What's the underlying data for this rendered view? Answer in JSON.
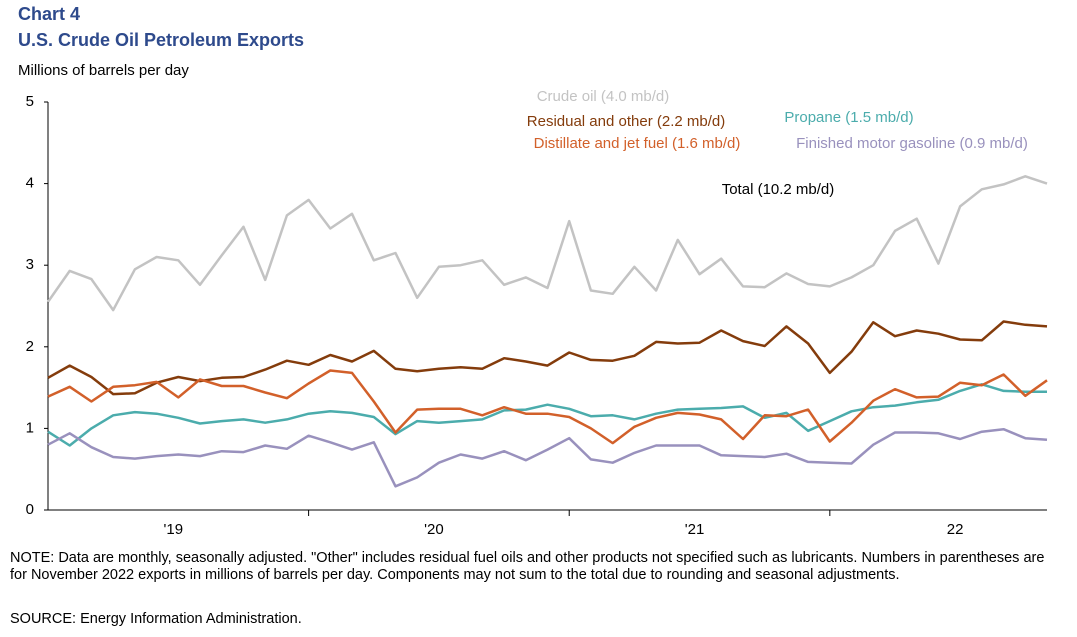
{
  "chart_data": {
    "type": "line",
    "title": "Chart 4",
    "subtitle": "U.S. Crude Oil Petroleum Exports",
    "y_label": "Millions  of barrels per day",
    "categories": [
      null,
      null,
      null,
      null,
      null,
      null,
      "'19",
      null,
      null,
      null,
      null,
      null,
      null,
      null,
      null,
      null,
      null,
      null,
      "'20",
      null,
      null,
      null,
      null,
      null,
      null,
      null,
      null,
      null,
      null,
      null,
      "'21",
      null,
      null,
      null,
      null,
      null,
      null,
      null,
      null,
      null,
      null,
      null,
      "22",
      null,
      null,
      null,
      null
    ],
    "ylim": [
      0,
      5
    ],
    "yticks": [
      0,
      1,
      2,
      3,
      4,
      5
    ],
    "grid": false,
    "series": [
      {
        "name": "Crude  oil  (4.0 mb/d)",
        "color": "#c3c3c3",
        "values": [
          2.55,
          2.93,
          2.83,
          2.45,
          2.95,
          3.1,
          3.06,
          2.76,
          3.12,
          3.47,
          2.82,
          3.61,
          3.8,
          3.45,
          3.63,
          3.06,
          3.15,
          2.6,
          2.98,
          3.0,
          3.06,
          2.76,
          2.85,
          2.72,
          3.54,
          2.69,
          2.65,
          2.98,
          2.69,
          3.31,
          2.89,
          3.08,
          2.74,
          2.73,
          2.9,
          2.77,
          2.74,
          2.85,
          3.0,
          3.42,
          3.57,
          3.02,
          3.72,
          3.93,
          3.99,
          4.09,
          4.0
        ]
      },
      {
        "name": "Residual  and  other  (2.2 mb/d)",
        "color": "#843c0c",
        "values": [
          1.62,
          1.77,
          1.63,
          1.42,
          1.43,
          1.56,
          1.63,
          1.58,
          1.62,
          1.63,
          1.72,
          1.83,
          1.78,
          1.9,
          1.82,
          1.95,
          1.73,
          1.7,
          1.73,
          1.75,
          1.73,
          1.86,
          1.82,
          1.77,
          1.93,
          1.84,
          1.83,
          1.89,
          2.06,
          2.04,
          2.05,
          2.2,
          2.07,
          2.01,
          2.25,
          2.04,
          1.68,
          1.94,
          2.3,
          2.13,
          2.2,
          2.16,
          2.09,
          2.08,
          2.31,
          2.27,
          2.25
        ]
      },
      {
        "name": "Propane  (1.5 mb/d)",
        "color": "#4bacac",
        "values": [
          0.96,
          0.79,
          1.0,
          1.16,
          1.2,
          1.18,
          1.13,
          1.06,
          1.09,
          1.11,
          1.07,
          1.11,
          1.18,
          1.21,
          1.19,
          1.14,
          0.93,
          1.09,
          1.07,
          1.09,
          1.11,
          1.22,
          1.23,
          1.29,
          1.24,
          1.15,
          1.16,
          1.11,
          1.18,
          1.23,
          1.24,
          1.25,
          1.27,
          1.13,
          1.19,
          0.97,
          1.09,
          1.21,
          1.26,
          1.28,
          1.32,
          1.35,
          1.46,
          1.54,
          1.46,
          1.45,
          1.45
        ]
      },
      {
        "name": "Distillate  and  jet  fuel  (1.6 mb/d)",
        "color": "#d2602a",
        "values": [
          1.39,
          1.51,
          1.33,
          1.51,
          1.53,
          1.57,
          1.38,
          1.6,
          1.52,
          1.52,
          1.44,
          1.37,
          1.55,
          1.71,
          1.68,
          1.33,
          0.95,
          1.23,
          1.24,
          1.24,
          1.16,
          1.26,
          1.18,
          1.18,
          1.14,
          1.0,
          0.82,
          1.02,
          1.13,
          1.19,
          1.17,
          1.11,
          0.87,
          1.16,
          1.15,
          1.23,
          0.84,
          1.07,
          1.34,
          1.48,
          1.38,
          1.39,
          1.56,
          1.53,
          1.66,
          1.4,
          1.59
        ]
      },
      {
        "name": "Finished  motor  gasoline  (0.9 mb/d)",
        "color": "#9991bd",
        "values": [
          0.8,
          0.94,
          0.77,
          0.65,
          0.63,
          0.66,
          0.68,
          0.66,
          0.72,
          0.71,
          0.79,
          0.75,
          0.91,
          0.83,
          0.74,
          0.83,
          0.29,
          0.4,
          0.58,
          0.68,
          0.63,
          0.72,
          0.61,
          0.74,
          0.88,
          0.62,
          0.58,
          0.7,
          0.79,
          0.79,
          0.79,
          0.67,
          0.66,
          0.65,
          0.69,
          0.59,
          0.58,
          0.57,
          0.8,
          0.95,
          0.95,
          0.94,
          0.87,
          0.96,
          0.99,
          0.88,
          0.86
        ]
      }
    ],
    "annotations": [
      "Total  (10.2 mb/d)"
    ],
    "note": "NOTE: Data are monthly,  seasonally adjusted. \"Other\" includes residual fuel oils and other products not specified such as lubricants. Numbers in parentheses are for November 2022 exports in millions of barrels per day. Components may not sum to the total due to rounding and seasonal adjustments.",
    "source": "SOURCE: Energy Information Administration."
  }
}
